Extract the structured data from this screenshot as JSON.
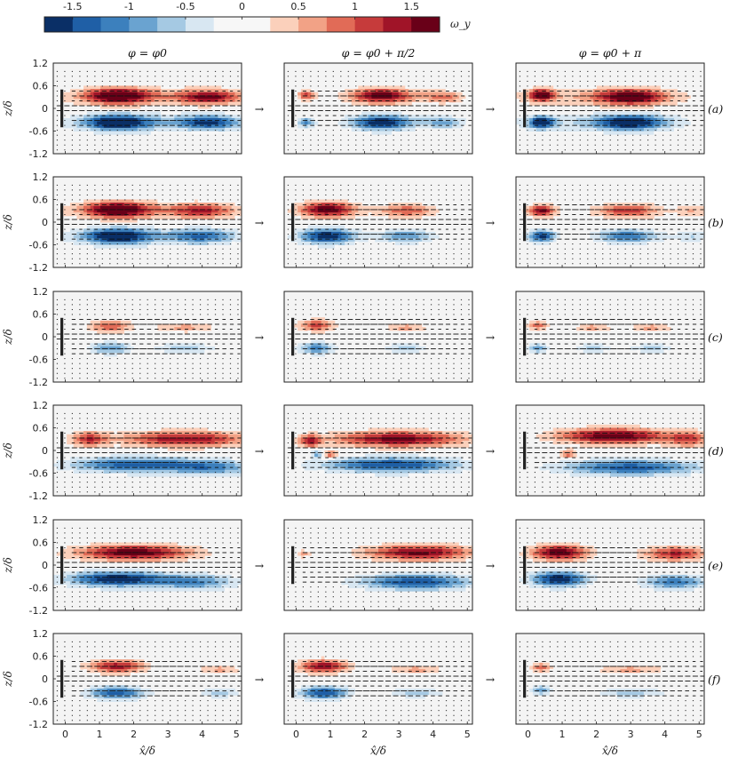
{
  "chart_data": {
    "type": "heatmap",
    "description_of_variable": "ω_y vorticity contours with velocity vectors",
    "colorbar": {
      "label": "ω_y",
      "ticks": [
        "-1.5",
        "-1",
        "-0.5",
        "0",
        "0.5",
        "1",
        "1.5"
      ],
      "range": [
        -1.75,
        1.75
      ],
      "levels": 14,
      "colors": [
        "#0a2f66",
        "#1f5fa6",
        "#3c80bd",
        "#6aa3d0",
        "#a5c9e3",
        "#d8e7f2",
        "#f7f7f7",
        "#f7f7f7",
        "#fbd0bb",
        "#f2a286",
        "#e16b57",
        "#c63b3b",
        "#a01428",
        "#690018"
      ]
    },
    "columns": [
      {
        "title": "φ = φ0"
      },
      {
        "title": "φ = φ0 + π/2"
      },
      {
        "title": "φ = φ0 + π"
      }
    ],
    "rows": [
      {
        "label": "(a)"
      },
      {
        "label": "(b)"
      },
      {
        "label": "(c)"
      },
      {
        "label": "(d)"
      },
      {
        "label": "(e)"
      },
      {
        "label": "(f)"
      }
    ],
    "arrow_symbol": "→",
    "x_axis": {
      "label": "x̂/δ",
      "range": [
        -0.35,
        5.15
      ],
      "ticks": [
        "0",
        "1",
        "2",
        "3",
        "4",
        "5"
      ]
    },
    "y_axis": {
      "label": "z/δ",
      "range": [
        -1.2,
        1.2
      ],
      "ticks": [
        "1.2",
        "0.6",
        "0",
        "-0.6",
        "-1.2"
      ]
    },
    "plate": {
      "x": -0.1,
      "z_range": [
        -0.5,
        0.5
      ]
    },
    "vortices": [
      [
        [
          [
            1.5,
            0.33,
            0.9,
            0.2,
            1.75
          ],
          [
            4.2,
            0.3,
            0.8,
            0.17,
            1.25
          ],
          [
            3.0,
            0.3,
            3.0,
            0.25,
            0.55
          ],
          [
            1.5,
            -0.37,
            0.9,
            0.2,
            -1.75
          ],
          [
            4.2,
            -0.37,
            0.8,
            0.17,
            -1.25
          ],
          [
            3.0,
            -0.37,
            3.0,
            0.25,
            -0.55
          ]
        ],
        [
          [
            0.3,
            0.35,
            0.25,
            0.12,
            1.1
          ],
          [
            2.5,
            0.33,
            0.9,
            0.2,
            1.75
          ],
          [
            4.3,
            0.3,
            0.6,
            0.15,
            0.9
          ],
          [
            0.3,
            -0.37,
            0.25,
            0.12,
            -1.1
          ],
          [
            2.5,
            -0.37,
            0.9,
            0.2,
            -1.75
          ],
          [
            4.3,
            -0.37,
            0.6,
            0.15,
            -0.9
          ]
        ],
        [
          [
            0.4,
            0.35,
            0.35,
            0.15,
            1.75
          ],
          [
            3.0,
            0.3,
            0.95,
            0.2,
            1.6
          ],
          [
            0.4,
            -0.37,
            0.35,
            0.15,
            -1.75
          ],
          [
            3.0,
            -0.37,
            0.95,
            0.2,
            -1.6
          ],
          [
            2.0,
            0.3,
            3.0,
            0.25,
            0.45
          ],
          [
            2.0,
            -0.37,
            3.0,
            0.25,
            -0.45
          ]
        ]
      ],
      [
        [
          [
            1.5,
            0.33,
            0.9,
            0.2,
            1.75
          ],
          [
            4.0,
            0.3,
            0.9,
            0.18,
            1.0
          ],
          [
            1.5,
            -0.37,
            0.9,
            0.2,
            -1.75
          ],
          [
            4.0,
            -0.37,
            0.9,
            0.18,
            -1.0
          ],
          [
            2.5,
            0.3,
            2.8,
            0.25,
            0.45
          ],
          [
            2.5,
            -0.37,
            2.8,
            0.25,
            -0.45
          ]
        ],
        [
          [
            0.9,
            0.33,
            0.8,
            0.2,
            1.75
          ],
          [
            3.2,
            0.3,
            0.8,
            0.17,
            1.0
          ],
          [
            0.9,
            -0.37,
            0.8,
            0.2,
            -1.75
          ],
          [
            3.2,
            -0.37,
            0.8,
            0.17,
            -1.0
          ]
        ],
        [
          [
            0.4,
            0.3,
            0.4,
            0.15,
            1.6
          ],
          [
            2.9,
            0.3,
            0.9,
            0.18,
            1.2
          ],
          [
            0.4,
            -0.37,
            0.4,
            0.15,
            -1.6
          ],
          [
            2.9,
            -0.37,
            0.9,
            0.18,
            -1.2
          ],
          [
            4.8,
            0.3,
            0.5,
            0.15,
            0.5
          ],
          [
            4.8,
            -0.37,
            0.5,
            0.15,
            -0.5
          ]
        ]
      ],
      [
        [
          [
            1.3,
            0.28,
            0.6,
            0.15,
            1.0
          ],
          [
            3.5,
            0.25,
            0.9,
            0.13,
            0.6
          ],
          [
            1.3,
            -0.3,
            0.6,
            0.15,
            -1.0
          ],
          [
            3.5,
            -0.3,
            0.9,
            0.13,
            -0.6
          ]
        ],
        [
          [
            0.6,
            0.3,
            0.5,
            0.15,
            1.1
          ],
          [
            3.2,
            0.25,
            0.6,
            0.12,
            0.6
          ],
          [
            0.6,
            -0.3,
            0.5,
            0.15,
            -1.1
          ],
          [
            3.2,
            -0.3,
            0.6,
            0.12,
            -0.6
          ]
        ],
        [
          [
            0.3,
            0.3,
            0.3,
            0.12,
            0.9
          ],
          [
            1.9,
            0.25,
            0.5,
            0.12,
            0.6
          ],
          [
            3.6,
            0.25,
            0.6,
            0.12,
            0.6
          ],
          [
            0.3,
            -0.3,
            0.3,
            0.12,
            -0.9
          ],
          [
            1.9,
            -0.3,
            0.5,
            0.12,
            -0.6
          ],
          [
            3.6,
            -0.3,
            0.6,
            0.12,
            -0.6
          ]
        ]
      ],
      [
        [
          [
            0.7,
            0.3,
            0.5,
            0.18,
            1.2
          ],
          [
            3.5,
            0.3,
            1.8,
            0.2,
            1.5
          ],
          [
            2.0,
            -0.38,
            1.8,
            0.2,
            -1.4
          ],
          [
            4.3,
            -0.45,
            1.2,
            0.2,
            -1.0
          ]
        ],
        [
          [
            0.4,
            0.25,
            0.3,
            0.15,
            1.3
          ],
          [
            3.0,
            0.3,
            1.9,
            0.2,
            1.6
          ],
          [
            1.0,
            -0.1,
            0.2,
            0.1,
            1.0
          ],
          [
            0.6,
            -0.1,
            0.15,
            0.1,
            -0.8
          ],
          [
            2.8,
            -0.38,
            2.0,
            0.2,
            -1.5
          ]
        ],
        [
          [
            2.5,
            0.38,
            1.6,
            0.2,
            1.75
          ],
          [
            4.7,
            0.3,
            0.6,
            0.2,
            1.0
          ],
          [
            1.2,
            -0.1,
            0.25,
            0.12,
            0.9
          ],
          [
            3.0,
            -0.45,
            2.0,
            0.2,
            -1.4
          ]
        ]
      ],
      [
        [
          [
            2.0,
            0.33,
            1.6,
            0.2,
            1.75
          ],
          [
            1.5,
            -0.37,
            1.4,
            0.2,
            -1.75
          ],
          [
            3.8,
            -0.45,
            1.2,
            0.2,
            -1.0
          ]
        ],
        [
          [
            3.6,
            0.33,
            1.5,
            0.2,
            1.6
          ],
          [
            3.5,
            -0.45,
            1.6,
            0.2,
            -1.5
          ],
          [
            0.2,
            0.3,
            0.2,
            0.1,
            0.6
          ]
        ],
        [
          [
            0.9,
            0.33,
            0.8,
            0.2,
            1.75
          ],
          [
            4.3,
            0.3,
            0.9,
            0.18,
            1.3
          ],
          [
            0.9,
            -0.37,
            0.8,
            0.2,
            -1.75
          ],
          [
            4.3,
            -0.45,
            0.9,
            0.18,
            -1.2
          ]
        ]
      ],
      [
        [
          [
            1.5,
            0.33,
            0.8,
            0.17,
            1.4
          ],
          [
            4.5,
            0.25,
            0.6,
            0.12,
            0.6
          ],
          [
            1.5,
            -0.37,
            0.8,
            0.17,
            -1.4
          ],
          [
            4.5,
            -0.37,
            0.6,
            0.12,
            -0.6
          ]
        ],
        [
          [
            0.8,
            0.33,
            0.7,
            0.17,
            1.5
          ],
          [
            3.5,
            0.25,
            0.8,
            0.12,
            0.6
          ],
          [
            0.8,
            -0.37,
            0.7,
            0.17,
            -1.5
          ],
          [
            3.5,
            -0.37,
            0.8,
            0.12,
            -0.6
          ]
        ],
        [
          [
            0.4,
            0.3,
            0.3,
            0.12,
            0.9
          ],
          [
            3.0,
            0.25,
            1.0,
            0.12,
            0.6
          ],
          [
            0.4,
            -0.3,
            0.3,
            0.12,
            -0.9
          ],
          [
            3.0,
            -0.37,
            1.0,
            0.12,
            -0.6
          ]
        ]
      ]
    ]
  }
}
